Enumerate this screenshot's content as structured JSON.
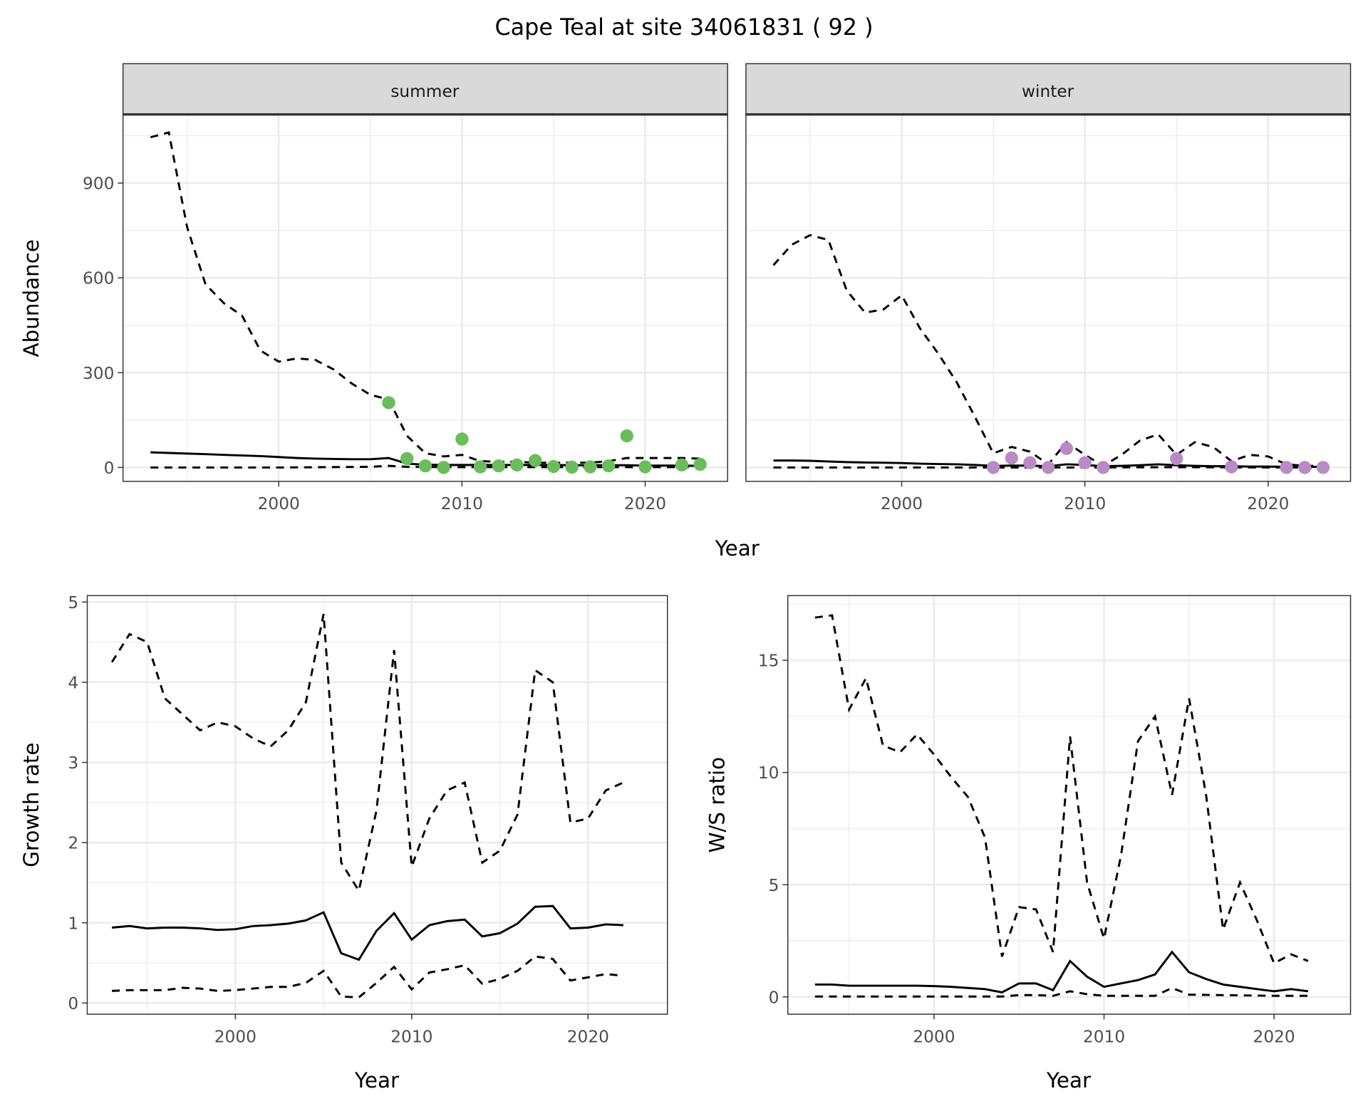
{
  "title": "Cape Teal at site 34061831 ( 92 )",
  "colors": {
    "summer_points": "#6abd5a",
    "winter_points": "#b98bc5",
    "lines": "#000000",
    "strip": "#d9d9d9",
    "grid": "#ebebeb"
  },
  "chart_data": [
    {
      "type": "line",
      "facet": "summer",
      "xlabel": "Year",
      "ylabel": "Abundance",
      "xlim": [
        1991.5,
        2024.5
      ],
      "ylim": [
        -44,
        1115
      ],
      "xticks": [
        2000,
        2010,
        2020
      ],
      "yticks": [
        0,
        300,
        600,
        900
      ],
      "grid": true,
      "series": [
        {
          "style": "dashed",
          "x": [
            1993,
            1994,
            1995,
            1996,
            1997,
            1998,
            1999,
            2000,
            2001,
            2002,
            2003,
            2004,
            2005,
            2006,
            2007,
            2008,
            2009,
            2010,
            2011,
            2012,
            2013,
            2014,
            2015,
            2016,
            2017,
            2018,
            2019,
            2020,
            2021,
            2022,
            2023
          ],
          "y": [
            1045,
            1060,
            760,
            580,
            520,
            480,
            370,
            335,
            345,
            340,
            310,
            265,
            230,
            215,
            100,
            45,
            35,
            40,
            20,
            18,
            18,
            15,
            15,
            15,
            15,
            20,
            30,
            30,
            30,
            30,
            28
          ]
        },
        {
          "style": "solid",
          "x": [
            1993,
            1994,
            1995,
            1996,
            1997,
            1998,
            1999,
            2000,
            2001,
            2002,
            2003,
            2004,
            2005,
            2006,
            2007,
            2008,
            2009,
            2010,
            2011,
            2012,
            2013,
            2014,
            2015,
            2016,
            2017,
            2018,
            2019,
            2020,
            2021,
            2022,
            2023
          ],
          "y": [
            48,
            46,
            44,
            42,
            40,
            38,
            36,
            33,
            30,
            28,
            27,
            26,
            26,
            30,
            12,
            9,
            8,
            8,
            8,
            8,
            8,
            8,
            8,
            7,
            7,
            7,
            7,
            6,
            6,
            6,
            5
          ]
        },
        {
          "style": "dashed",
          "x": [
            1993,
            2000,
            2005,
            2006,
            2007,
            2010,
            2015,
            2020,
            2023
          ],
          "y": [
            0,
            0,
            2,
            5,
            2,
            1,
            1,
            1,
            1
          ]
        }
      ],
      "points": {
        "x": [
          2006,
          2007,
          2008,
          2009,
          2010,
          2011,
          2012,
          2013,
          2014,
          2015,
          2016,
          2017,
          2018,
          2019,
          2020,
          2022,
          2023
        ],
        "y": [
          205,
          28,
          5,
          0,
          90,
          2,
          5,
          8,
          22,
          3,
          1,
          2,
          5,
          100,
          2,
          8,
          10
        ]
      }
    },
    {
      "type": "line",
      "facet": "winter",
      "xlabel": "Year",
      "ylabel": "Abundance",
      "xlim": [
        1991.5,
        2024.5
      ],
      "ylim": [
        -44,
        1115
      ],
      "xticks": [
        2000,
        2010,
        2020
      ],
      "yticks": [
        0,
        300,
        600,
        900
      ],
      "grid": true,
      "series": [
        {
          "style": "dashed",
          "x": [
            1993,
            1994,
            1995,
            1996,
            1997,
            1998,
            1999,
            2000,
            2001,
            2002,
            2003,
            2004,
            2005,
            2006,
            2007,
            2008,
            2009,
            2010,
            2011,
            2012,
            2013,
            2014,
            2015,
            2016,
            2017,
            2018,
            2019,
            2020,
            2021,
            2022,
            2023
          ],
          "y": [
            640,
            705,
            735,
            720,
            560,
            490,
            500,
            545,
            440,
            360,
            270,
            160,
            45,
            65,
            50,
            10,
            80,
            40,
            5,
            40,
            85,
            105,
            40,
            80,
            65,
            20,
            40,
            35,
            10,
            5,
            5
          ]
        },
        {
          "style": "solid",
          "x": [
            1993,
            1994,
            1995,
            1996,
            1997,
            1998,
            1999,
            2000,
            2001,
            2002,
            2003,
            2004,
            2005,
            2006,
            2007,
            2008,
            2009,
            2010,
            2011,
            2012,
            2013,
            2014,
            2015,
            2016,
            2017,
            2018,
            2019,
            2020,
            2021,
            2022,
            2023
          ],
          "y": [
            22,
            22,
            21,
            19,
            17,
            16,
            15,
            14,
            12,
            11,
            10,
            8,
            5,
            6,
            6,
            4,
            10,
            8,
            4,
            5,
            7,
            10,
            7,
            5,
            4,
            4,
            3,
            3,
            2,
            2,
            2
          ]
        },
        {
          "style": "dashed",
          "x": [
            1993,
            2000,
            2005,
            2010,
            2015,
            2020,
            2023
          ],
          "y": [
            0,
            0,
            0,
            0,
            1,
            0,
            0
          ]
        }
      ],
      "points": {
        "x": [
          2005,
          2006,
          2007,
          2008,
          2009,
          2010,
          2011,
          2015,
          2018,
          2021,
          2022,
          2023
        ],
        "y": [
          0,
          30,
          15,
          0,
          60,
          15,
          0,
          28,
          2,
          0,
          0,
          0
        ]
      }
    },
    {
      "type": "line",
      "xlabel": "Year",
      "ylabel": "Growth rate",
      "xlim": [
        1991.6,
        2024.5
      ],
      "ylim": [
        -0.14,
        5.08
      ],
      "xticks": [
        2000,
        2010,
        2020
      ],
      "yticks": [
        0,
        1,
        2,
        3,
        4,
        5
      ],
      "grid": true,
      "series": [
        {
          "style": "dashed",
          "x": [
            1993,
            1994,
            1995,
            1996,
            1997,
            1998,
            1999,
            2000,
            2001,
            2002,
            2003,
            2004,
            2005,
            2006,
            2007,
            2008,
            2009,
            2010,
            2011,
            2012,
            2013,
            2014,
            2015,
            2016,
            2017,
            2018,
            2019,
            2020,
            2021,
            2022
          ],
          "y": [
            4.25,
            4.6,
            4.5,
            3.8,
            3.6,
            3.4,
            3.5,
            3.45,
            3.3,
            3.2,
            3.4,
            3.75,
            4.85,
            1.75,
            1.4,
            2.4,
            4.4,
            1.7,
            2.3,
            2.65,
            2.75,
            1.75,
            1.9,
            2.35,
            4.15,
            4.0,
            2.25,
            2.3,
            2.65,
            2.75
          ]
        },
        {
          "style": "solid",
          "x": [
            1993,
            1994,
            1995,
            1996,
            1997,
            1998,
            1999,
            2000,
            2001,
            2002,
            2003,
            2004,
            2005,
            2006,
            2007,
            2008,
            2009,
            2010,
            2011,
            2012,
            2013,
            2014,
            2015,
            2016,
            2017,
            2018,
            2019,
            2020,
            2021,
            2022
          ],
          "y": [
            0.94,
            0.96,
            0.93,
            0.94,
            0.94,
            0.93,
            0.91,
            0.92,
            0.96,
            0.97,
            0.99,
            1.03,
            1.13,
            0.62,
            0.54,
            0.9,
            1.12,
            0.79,
            0.97,
            1.02,
            1.04,
            0.83,
            0.87,
            0.99,
            1.2,
            1.21,
            0.93,
            0.94,
            0.98,
            0.97
          ]
        },
        {
          "style": "dashed",
          "x": [
            1993,
            1994,
            1995,
            1996,
            1997,
            1998,
            1999,
            2000,
            2001,
            2002,
            2003,
            2004,
            2005,
            2006,
            2007,
            2008,
            2009,
            2010,
            2011,
            2012,
            2013,
            2014,
            2015,
            2016,
            2017,
            2018,
            2019,
            2020,
            2021,
            2022
          ],
          "y": [
            0.15,
            0.16,
            0.16,
            0.16,
            0.19,
            0.18,
            0.15,
            0.16,
            0.18,
            0.2,
            0.2,
            0.25,
            0.4,
            0.08,
            0.07,
            0.25,
            0.45,
            0.17,
            0.38,
            0.42,
            0.47,
            0.24,
            0.3,
            0.4,
            0.58,
            0.55,
            0.28,
            0.32,
            0.36,
            0.34
          ]
        }
      ]
    },
    {
      "type": "line",
      "xlabel": "Year",
      "ylabel": "W/S ratio",
      "xlim": [
        1991.4,
        2024.5
      ],
      "ylim": [
        -0.77,
        17.88
      ],
      "xticks": [
        2000,
        2010,
        2020
      ],
      "yticks": [
        0,
        5,
        10,
        15
      ],
      "grid": true,
      "series": [
        {
          "style": "dashed",
          "x": [
            1993,
            1994,
            1995,
            1996,
            1997,
            1998,
            1999,
            2000,
            2001,
            2002,
            2003,
            2004,
            2005,
            2006,
            2007,
            2008,
            2009,
            2010,
            2011,
            2012,
            2013,
            2014,
            2015,
            2016,
            2017,
            2018,
            2019,
            2020,
            2021,
            2022
          ],
          "y": [
            16.9,
            17.0,
            12.8,
            14.2,
            11.2,
            10.9,
            11.7,
            10.8,
            9.8,
            8.9,
            7.1,
            1.8,
            4.0,
            3.9,
            2.0,
            11.6,
            5.1,
            2.6,
            6.3,
            11.4,
            12.5,
            9.0,
            13.3,
            9.0,
            3.0,
            5.1,
            3.4,
            1.5,
            1.9,
            1.6
          ]
        },
        {
          "style": "solid",
          "x": [
            1993,
            1994,
            1995,
            1996,
            1997,
            1998,
            1999,
            2000,
            2001,
            2002,
            2003,
            2004,
            2005,
            2006,
            2007,
            2008,
            2009,
            2010,
            2011,
            2012,
            2013,
            2014,
            2015,
            2016,
            2017,
            2018,
            2019,
            2020,
            2021,
            2022
          ],
          "y": [
            0.55,
            0.55,
            0.5,
            0.5,
            0.5,
            0.5,
            0.5,
            0.48,
            0.45,
            0.4,
            0.35,
            0.2,
            0.6,
            0.6,
            0.3,
            1.6,
            0.9,
            0.45,
            0.6,
            0.75,
            1.0,
            2.0,
            1.1,
            0.8,
            0.55,
            0.45,
            0.35,
            0.25,
            0.35,
            0.25
          ]
        },
        {
          "style": "dashed",
          "x": [
            1993,
            2000,
            2004,
            2005,
            2006,
            2007,
            2008,
            2009,
            2010,
            2013,
            2014,
            2015,
            2020,
            2022
          ],
          "y": [
            0.02,
            0.02,
            0.02,
            0.08,
            0.08,
            0.05,
            0.25,
            0.12,
            0.05,
            0.05,
            0.4,
            0.1,
            0.05,
            0.05
          ]
        }
      ]
    }
  ]
}
